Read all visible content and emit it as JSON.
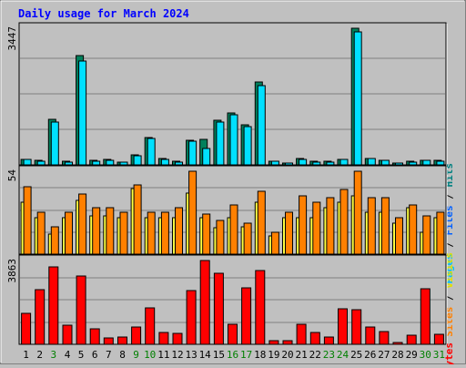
{
  "chart_data": {
    "type": "bar",
    "title": "Daily usage for March 2024",
    "categories": [
      "1",
      "2",
      "3",
      "4",
      "5",
      "6",
      "7",
      "8",
      "9",
      "10",
      "11",
      "12",
      "13",
      "14",
      "15",
      "16",
      "17",
      "18",
      "19",
      "20",
      "21",
      "22",
      "23",
      "24",
      "25",
      "26",
      "27",
      "28",
      "29",
      "30",
      "31"
    ],
    "weekend_days": [
      "3",
      "9",
      "10",
      "16",
      "17",
      "23",
      "24",
      "30",
      "31"
    ],
    "panels": [
      {
        "id": "top",
        "max_label": "3447",
        "ylim": [
          0,
          3447
        ],
        "right_label_parts": [
          {
            "text": "Pages",
            "color": "#00c0ff"
          },
          {
            "text": " / ",
            "color": "#000000"
          },
          {
            "text": "Files",
            "color": "#0060ff"
          },
          {
            "text": " / ",
            "color": "#000000"
          },
          {
            "text": "Hits",
            "color": "#008080"
          }
        ],
        "series": [
          {
            "name": "Hits",
            "color": "#00805c",
            "values": [
              140,
              120,
              1150,
              90,
              2750,
              110,
              130,
              80,
              250,
              700,
              170,
              100,
              620,
              650,
              1120,
              1320,
              1010,
              2080,
              100,
              50,
              160,
              90,
              100,
              140,
              3447,
              170,
              120,
              50,
              90,
              110,
              110
            ]
          },
          {
            "name": "Files",
            "color": "#00e0ff",
            "values": [
              140,
              100,
              1080,
              60,
              2630,
              90,
              110,
              60,
              220,
              660,
              130,
              80,
              600,
              420,
              1080,
              1260,
              960,
              2010,
              90,
              40,
              140,
              70,
              80,
              130,
              3350,
              150,
              110,
              40,
              80,
              110,
              100
            ]
          }
        ]
      },
      {
        "id": "middle",
        "max_label": "54",
        "ylim": [
          0,
          54
        ],
        "right_label_parts": [
          {
            "text": "Sites",
            "color": "#ff8000"
          },
          {
            "text": " / ",
            "color": "#000000"
          },
          {
            "text": "Visits",
            "color": "#e0e000"
          }
        ],
        "series": [
          {
            "name": "Visits",
            "color": "#ffff40",
            "values": [
              34,
              24,
              13,
              24,
              35,
              25,
              25,
              24,
              43,
              24,
              24,
              24,
              40,
              24,
              17,
              24,
              18,
              34,
              12,
              24,
              24,
              24,
              30,
              34,
              38,
              27,
              27,
              20,
              30,
              14,
              24
            ]
          },
          {
            "name": "Sites",
            "color": "#ff8000",
            "values": [
              44,
              27,
              18,
              27,
              39,
              30,
              30,
              27,
              45,
              27,
              27,
              30,
              54,
              26,
              22,
              32,
              20,
              41,
              14,
              27,
              38,
              34,
              37,
              42,
              54,
              37,
              37,
              24,
              32,
              25,
              27
            ]
          }
        ]
      },
      {
        "id": "bottom",
        "max_label": "3863",
        "ylim": [
          0,
          3863
        ],
        "right_label_parts": [
          {
            "text": "KBytes",
            "color": "#ff0000"
          }
        ],
        "series": [
          {
            "name": "KBytes",
            "color": "#ff0000",
            "values": [
              1430,
              2520,
              3550,
              870,
              3170,
              720,
              310,
              350,
              810,
              1670,
              560,
              510,
              2460,
              3863,
              3270,
              930,
              2620,
              3400,
              150,
              150,
              940,
              540,
              340,
              1640,
              1600,
              800,
              600,
              100,
              400,
              2550,
              450
            ]
          }
        ]
      }
    ]
  }
}
